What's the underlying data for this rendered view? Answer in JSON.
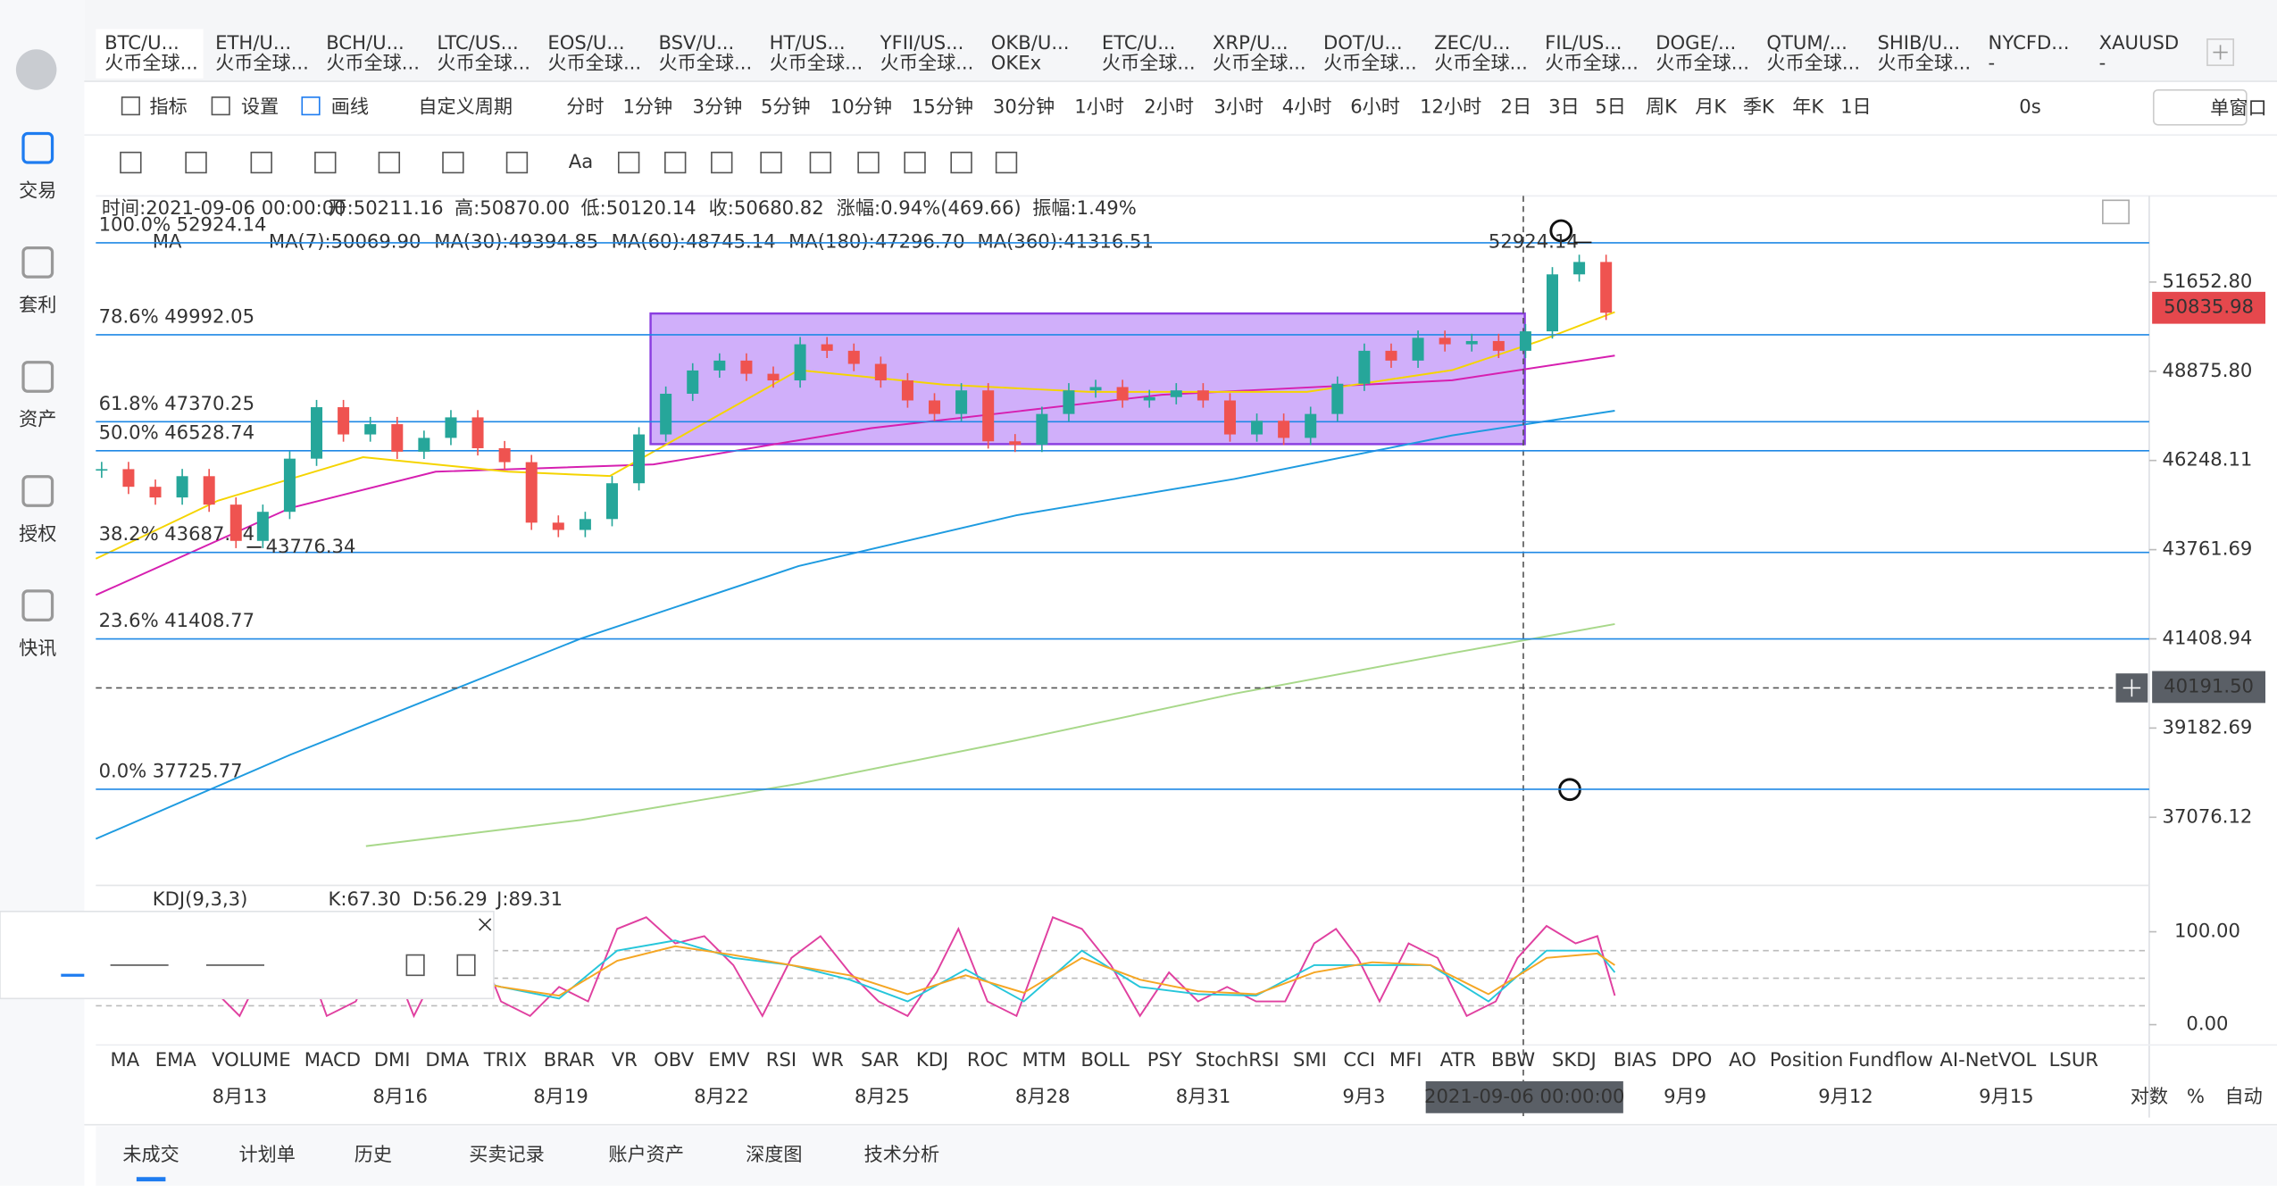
{
  "tabs": [
    {
      "title": "BTC/U...",
      "sub": "火币全球..."
    },
    {
      "title": "ETH/U...",
      "sub": "火币全球..."
    },
    {
      "title": "BCH/U...",
      "sub": "火币全球..."
    },
    {
      "title": "LTC/US...",
      "sub": "火币全球..."
    },
    {
      "title": "EOS/U...",
      "sub": "火币全球..."
    },
    {
      "title": "BSV/U...",
      "sub": "火币全球..."
    },
    {
      "title": "HT/US...",
      "sub": "火币全球..."
    },
    {
      "title": "YFII/US...",
      "sub": "火币全球..."
    },
    {
      "title": "OKB/U...",
      "sub": "OKEx"
    },
    {
      "title": "ETC/U...",
      "sub": "火币全球..."
    },
    {
      "title": "XRP/U...",
      "sub": "火币全球..."
    },
    {
      "title": "DOT/U...",
      "sub": "火币全球..."
    },
    {
      "title": "ZEC/U...",
      "sub": "火币全球..."
    },
    {
      "title": "FIL/US...",
      "sub": "火币全球..."
    },
    {
      "title": "DOGE/...",
      "sub": "火币全球..."
    },
    {
      "title": "QTUM/...",
      "sub": "火币全球..."
    },
    {
      "title": "SHIB/U...",
      "sub": "火币全球..."
    },
    {
      "title": "NYCFD...",
      "sub": "-"
    },
    {
      "title": "XAUUSD",
      "sub": "-"
    }
  ],
  "toolbar": {
    "indicator": "指标",
    "settings": "设置",
    "draw": "画线",
    "custom_period": "自定义周期",
    "periods": [
      "分时",
      "1分钟",
      "3分钟",
      "5分钟",
      "10分钟",
      "15分钟",
      "30分钟",
      "1小时",
      "2小时",
      "3小时",
      "4小时",
      "6小时",
      "12小时",
      "2日",
      "3日",
      "5日",
      "周K",
      "月K",
      "季K",
      "年K",
      "1日"
    ],
    "active_period": 10,
    "countdown": "0s",
    "window": "单窗口"
  },
  "drawing_tools": {
    "text_tool": "Aa"
  },
  "sidebar": [
    "交易",
    "套利",
    "资产",
    "授权",
    "快讯"
  ],
  "header": {
    "time": "时间:2021-09-06 00:00:00",
    "open": "开:50211.16",
    "high": "高:50870.00",
    "low": "低:50120.14",
    "close": "收:50680.82",
    "change": "涨幅:0.94%(469.66)",
    "amplitude": "振幅:1.49%"
  },
  "ma": {
    "label": "MA",
    "items": [
      {
        "text": "MA(7):50069.90",
        "color": "#b0b0b0"
      },
      {
        "text": "MA(30):49394.85",
        "color": "#f5d400"
      },
      {
        "text": "MA(60):48745.14",
        "color": "#d61fb0"
      },
      {
        "text": "MA(180):47296.70",
        "color": "#1e9be0"
      },
      {
        "text": "MA(360):41316.51",
        "color": "#a8d88a"
      }
    ]
  },
  "price_chart": {
    "scale": "log",
    "ylim": [
      35705,
      54240
    ],
    "yticks": [
      {
        "value": 51652.8,
        "label": "51652.80"
      },
      {
        "value": 48875.8,
        "label": "48875.80"
      },
      46248.11,
      43761.69,
      {
        "value": 41408.94,
        "label": "41408.94"
      },
      39182.69,
      37076.12
    ],
    "fib": [
      {
        "level": "100.0%",
        "price": 52924.14
      },
      {
        "level": "78.6%",
        "price": 49992.05
      },
      {
        "level": "61.8%",
        "price": 47370.25
      },
      {
        "level": "50.0%",
        "price": 46528.74
      },
      {
        "level": "38.2%",
        "price": 43687.24
      },
      {
        "level": "23.6%",
        "price": 41408.77
      },
      {
        "level": "0.0%",
        "price": 37725.77
      }
    ],
    "closes": [
      46000,
      45500,
      45200,
      45800,
      45000,
      44000,
      44800,
      46300,
      47800,
      47000,
      47300,
      46500,
      46900,
      47500,
      46600,
      46200,
      44500,
      44300,
      44600,
      45600,
      47000,
      48200,
      48900,
      49200,
      48800,
      48600,
      49700,
      49500,
      49100,
      48600,
      48000,
      47600,
      48300,
      46800,
      46700,
      47600,
      48300,
      48400,
      48000,
      48100,
      48300,
      48000,
      47000,
      47400,
      46900,
      47600,
      48500,
      49500,
      49200,
      49900,
      49700,
      49800,
      49500,
      50100,
      51900,
      52300,
      50680.82
    ],
    "up_color": "#26a69a",
    "down_color": "#ef5350",
    "max_label": 52924.14,
    "min_label": 43776.34,
    "current_price": 50835.98,
    "crosshair_price": {
      "value": 40191.5,
      "label": "40191.50"
    }
  },
  "kdj": {
    "label": "KDJ(9,3,3)",
    "k": "K:67.30",
    "d": "D:56.29",
    "j": "J:89.31",
    "ylim": [
      0,
      100
    ],
    "yticks": [
      {
        "value": 100,
        "label": "100.00"
      },
      {
        "value": 0,
        "label": "0.00"
      }
    ]
  },
  "indicators": [
    "MA",
    "EMA",
    "VOLUME",
    "MACD",
    "DMI",
    "DMA",
    "TRIX",
    "BRAR",
    "VR",
    "OBV",
    "EMV",
    "RSI",
    "WR",
    "SAR",
    "KDJ",
    "ROC",
    "MTM",
    "BOLL",
    "PSY",
    "StochRSI",
    "SMI",
    "CCI",
    "MFI",
    "ATR",
    "BBW",
    "SKDJ",
    "BIAS",
    "DPO",
    "AO",
    "Position",
    "Fundflow",
    "AI-NetVOL",
    "LSUR"
  ],
  "active_indicator": 14,
  "time_axis": [
    "8月13",
    "8月16",
    "8月19",
    "8月22",
    "8月25",
    "8月28",
    "8月31",
    "9月3",
    "2021-09-06 00:00:00",
    "9月9",
    "9月12",
    "9月15"
  ],
  "crosshair_time_index": 8,
  "axis_modes": [
    "对数",
    "%",
    "自动"
  ],
  "bottom_tabs": [
    "未成交",
    "计划单",
    "历史",
    "买卖记录",
    "账户资产",
    "深度图",
    "技术分析"
  ]
}
